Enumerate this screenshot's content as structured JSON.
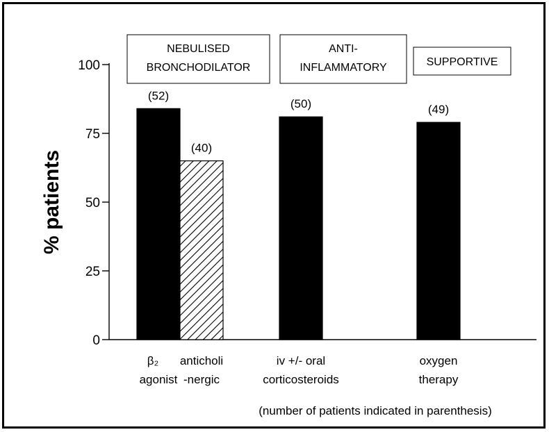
{
  "chart_data": {
    "type": "bar",
    "ylabel": "% patients",
    "ylim": [
      0,
      100
    ],
    "yticks": [
      "0",
      "25",
      "50",
      "75",
      "100"
    ],
    "groups": [
      {
        "label_lines": [
          "NEBULISED",
          "BRONCHODILATOR"
        ]
      },
      {
        "label_lines": [
          "ANTI-",
          "INFLAMMATORY"
        ]
      },
      {
        "label_lines": [
          "SUPPORTIVE"
        ]
      }
    ],
    "bars": [
      {
        "group": 0,
        "category_lines": [
          "β₂",
          "agonist"
        ],
        "value": 84,
        "count_label": "(52)",
        "fill": "#000000",
        "pattern": "solid"
      },
      {
        "group": 0,
        "category_lines": [
          "anticholi",
          "-nergic"
        ],
        "value": 65,
        "count_label": "(40)",
        "fill": "#ffffff",
        "pattern": "hatched"
      },
      {
        "group": 1,
        "category_lines": [
          "iv +/- oral",
          "corticosteroids"
        ],
        "value": 81,
        "count_label": "(50)",
        "fill": "#000000",
        "pattern": "solid"
      },
      {
        "group": 2,
        "category_lines": [
          "oxygen",
          "therapy"
        ],
        "value": 79,
        "count_label": "(49)",
        "fill": "#000000",
        "pattern": "solid"
      }
    ],
    "footnote": "(number of patients indicated in parenthesis)",
    "grid": false
  }
}
